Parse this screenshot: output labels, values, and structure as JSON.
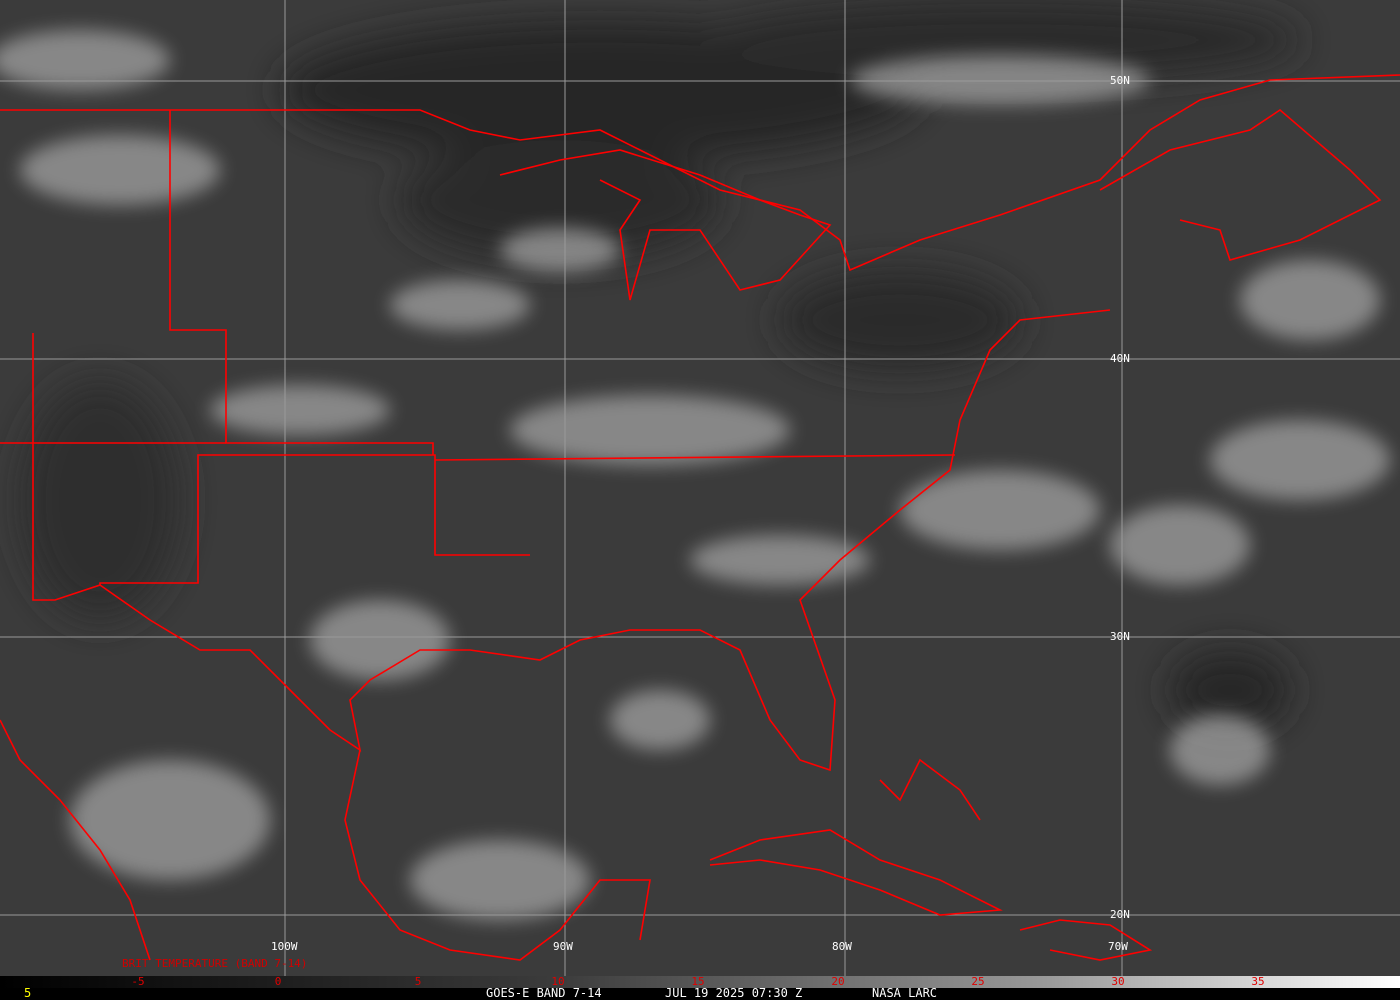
{
  "map": {
    "latitude_labels": [
      "50N",
      "40N",
      "30N",
      "20N"
    ],
    "longitude_labels": [
      "100W",
      "90W",
      "80W",
      "70W"
    ],
    "border_color": "#ff0000",
    "grid_color": "#9a9a9a"
  },
  "colorbar": {
    "title": "BRIT TEMPERATURE (BAND 7-14)",
    "ticks": [
      "-5",
      "0",
      "5",
      "10",
      "15",
      "20",
      "25",
      "30",
      "35"
    ],
    "tick_color": "#e00000"
  },
  "footer": {
    "frame_number": "5",
    "product": "GOES-E BAND 7-14",
    "datetime": "JUL 19 2025 07:30 Z",
    "source": "NASA LARC"
  }
}
